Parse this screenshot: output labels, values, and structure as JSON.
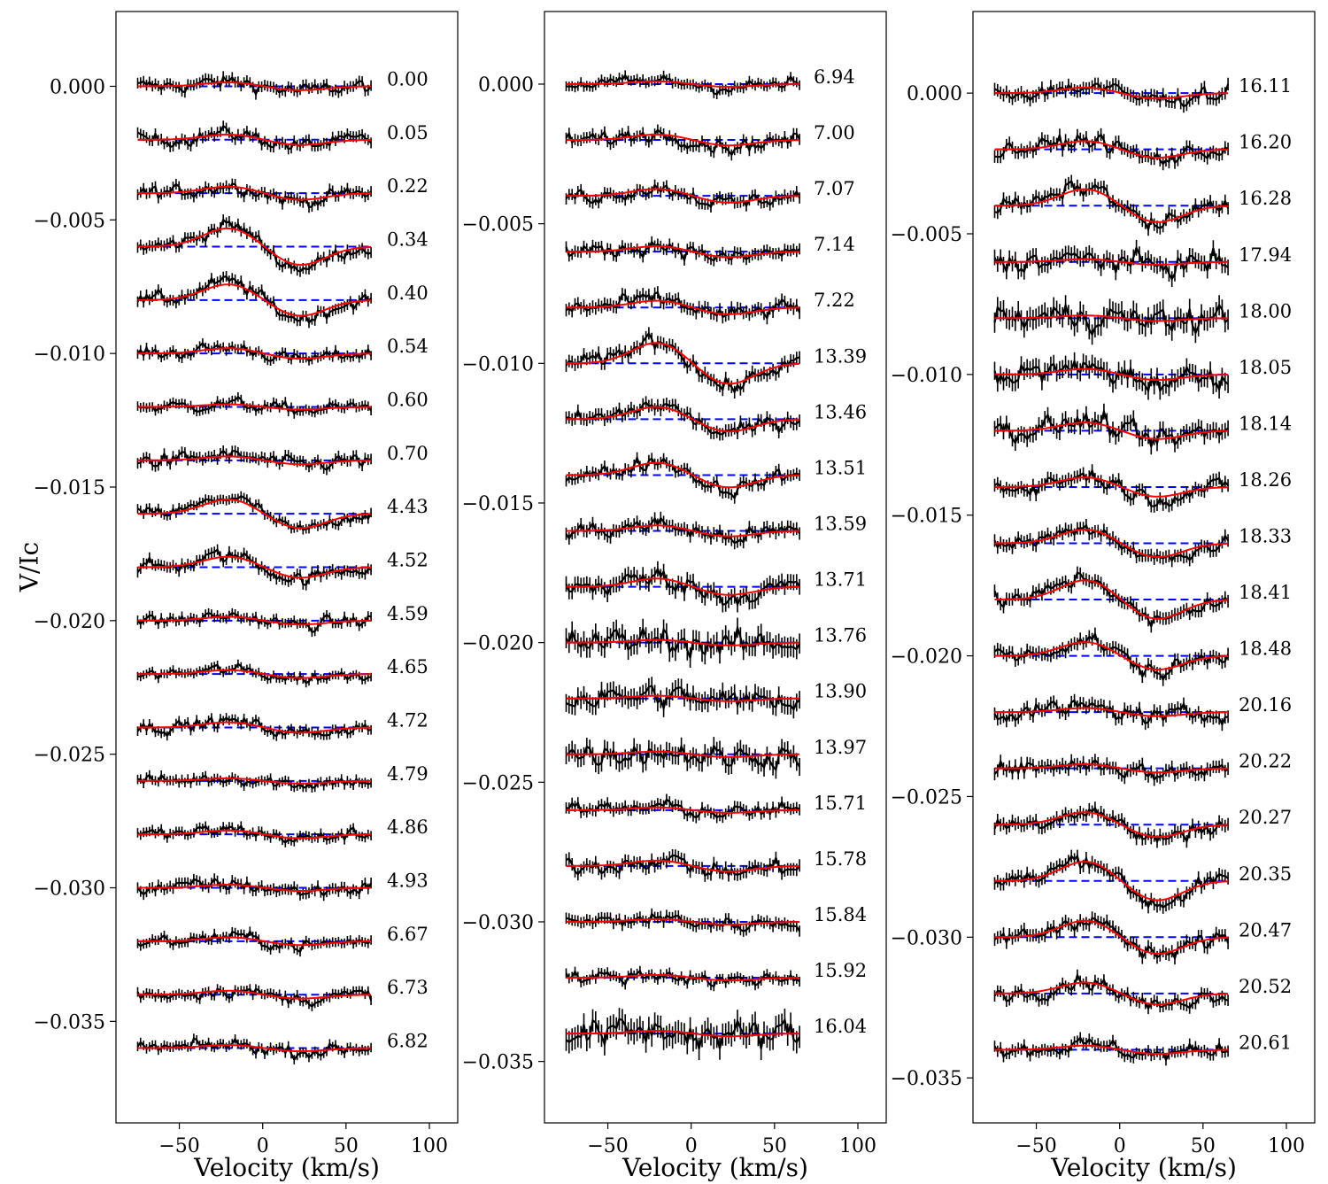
{
  "colors": {
    "observed": "#000000",
    "model": "#ff0000",
    "zero_level": "#0000ff",
    "axes": "#000000",
    "background": "#ffffff"
  },
  "chart_data": {
    "type": "line",
    "ylabel": "V/Ic",
    "xlabel": "Velocity (km/s)",
    "grid": false,
    "legend": "none",
    "offset_step": -0.002,
    "panels": [
      {
        "xlim": [
          -88,
          117
        ],
        "ylim": [
          -0.0388,
          0.0028
        ],
        "xticks": [
          -50,
          0,
          50,
          100
        ],
        "xtick_labels": [
          "−50",
          "0",
          "50",
          "100"
        ],
        "yticks": [
          0.0,
          -0.005,
          -0.01,
          -0.015,
          -0.02,
          -0.025,
          -0.03,
          -0.035
        ],
        "ytick_labels": [
          "0.000",
          "−0.005",
          "−0.010",
          "−0.015",
          "−0.020",
          "−0.025",
          "−0.030",
          "−0.035"
        ],
        "epochs": [
          "0.00",
          "0.05",
          "0.22",
          "0.34",
          "0.40",
          "0.54",
          "0.60",
          "0.70",
          "4.43",
          "4.52",
          "4.59",
          "4.65",
          "4.72",
          "4.79",
          "4.86",
          "4.93",
          "6.67",
          "6.73",
          "6.82"
        ],
        "amplitudes": [
          0.00015,
          0.0002,
          0.00025,
          0.0007,
          0.0006,
          0.0002,
          0.0001,
          0.00015,
          0.00055,
          0.0004,
          0.00015,
          0.00015,
          0.0002,
          0.0001,
          0.00015,
          0.00012,
          0.00015,
          0.00015,
          0.00012
        ],
        "noise": [
          0.00025,
          0.00025,
          0.00025,
          0.00025,
          0.00025,
          0.00022,
          0.00022,
          0.00025,
          0.00022,
          0.00025,
          0.00022,
          0.0002,
          0.00022,
          0.00022,
          0.00022,
          0.00025,
          0.00022,
          0.00022,
          0.00022
        ],
        "label_x": 437
      },
      {
        "xlim": [
          -88,
          117
        ],
        "ylim": [
          -0.0372,
          0.0026
        ],
        "xticks": [
          -50,
          0,
          50,
          100
        ],
        "xtick_labels": [
          "−50",
          "0",
          "50",
          "100"
        ],
        "yticks": [
          0.0,
          -0.005,
          -0.01,
          -0.015,
          -0.02,
          -0.025,
          -0.03,
          -0.035
        ],
        "ytick_labels": [
          "0.000",
          "−0.005",
          "−0.010",
          "−0.015",
          "−0.020",
          "−0.025",
          "−0.030",
          "−0.035"
        ],
        "epochs": [
          "6.94",
          "7.00",
          "7.07",
          "7.14",
          "7.22",
          "13.39",
          "13.46",
          "13.51",
          "13.59",
          "13.71",
          "13.76",
          "13.90",
          "13.97",
          "15.71",
          "15.78",
          "15.84",
          "15.92",
          "16.04"
        ],
        "amplitudes": [
          0.0001,
          0.0002,
          0.00025,
          0.0002,
          0.00025,
          0.00075,
          0.00045,
          0.00045,
          0.0002,
          0.0003,
          0.0001,
          0.0001,
          0.0001,
          0.0001,
          0.0002,
          0.0001,
          0.0001,
          0.0001
        ],
        "noise": [
          0.00022,
          0.00025,
          0.00025,
          0.00025,
          0.00028,
          0.00028,
          0.00028,
          0.00025,
          0.00028,
          0.00035,
          0.00045,
          0.0004,
          0.0004,
          0.00025,
          0.00028,
          0.00025,
          0.00022,
          0.0005
        ],
        "label_x": 919
      },
      {
        "xlim": [
          -88,
          117
        ],
        "ylim": [
          -0.0366,
          0.0029
        ],
        "xticks": [
          -50,
          0,
          50,
          100
        ],
        "xtick_labels": [
          "−50",
          "0",
          "50",
          "100"
        ],
        "yticks": [
          0.0,
          -0.005,
          -0.01,
          -0.015,
          -0.02,
          -0.025,
          -0.03,
          -0.035
        ],
        "ytick_labels": [
          "0.000",
          "−0.005",
          "−0.010",
          "−0.015",
          "−0.020",
          "−0.025",
          "−0.030",
          "−0.035"
        ],
        "epochs": [
          "16.11",
          "16.20",
          "16.28",
          "17.94",
          "18.00",
          "18.05",
          "18.14",
          "18.26",
          "18.33",
          "18.41",
          "18.48",
          "20.16",
          "20.22",
          "20.27",
          "20.35",
          "20.47",
          "20.52",
          "20.61"
        ],
        "amplitudes": [
          0.0002,
          0.0003,
          0.0006,
          0.0001,
          0.0001,
          0.0002,
          0.0003,
          0.00035,
          0.0005,
          0.0007,
          0.0005,
          0.00015,
          0.00015,
          0.00045,
          0.0007,
          0.0006,
          0.0004,
          0.00015
        ],
        "noise": [
          0.00028,
          0.00028,
          0.00028,
          0.00035,
          0.00045,
          0.0004,
          0.00035,
          0.00028,
          0.00028,
          0.00028,
          0.00028,
          0.00028,
          0.00028,
          0.00028,
          0.00028,
          0.00028,
          0.00025,
          0.00025
        ],
        "label_x": 1399
      }
    ],
    "velocity_range": [
      -75,
      65
    ]
  }
}
